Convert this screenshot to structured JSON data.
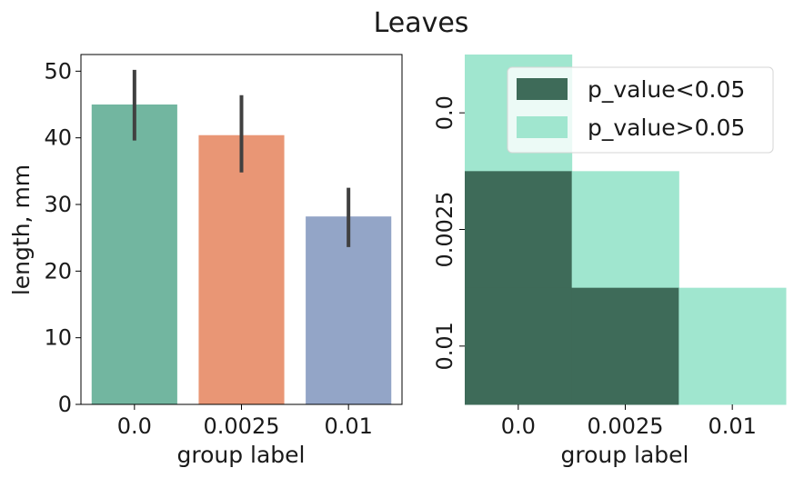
{
  "title": "Leaves",
  "colors": {
    "bars": [
      "#72b6a0",
      "#e99675",
      "#93a5c7"
    ],
    "errorbar": "#404040",
    "significant": "#3e6b59",
    "not_significant": "#a0e6cf",
    "axis": "#000000"
  },
  "chart_data": [
    {
      "type": "bar",
      "categories": [
        "0.0",
        "0.0025",
        "0.01"
      ],
      "values": [
        45.0,
        40.4,
        28.2
      ],
      "error_low": [
        39.6,
        34.8,
        23.6
      ],
      "error_high": [
        50.2,
        46.4,
        32.5
      ],
      "xlabel": "group label",
      "ylabel": "length, mm",
      "ylim": [
        0,
        52.5
      ],
      "yticks": [
        "0",
        "10",
        "20",
        "30",
        "40",
        "50"
      ],
      "grid": false
    },
    {
      "type": "heatmap",
      "x_categories": [
        "0.0",
        "0.0025",
        "0.01"
      ],
      "y_categories": [
        "0.0",
        "0.0025",
        "0.01"
      ],
      "cells": [
        {
          "row": 0,
          "col": 0,
          "class": "not_significant"
        },
        {
          "row": 1,
          "col": 0,
          "class": "significant"
        },
        {
          "row": 1,
          "col": 1,
          "class": "not_significant"
        },
        {
          "row": 2,
          "col": 0,
          "class": "significant"
        },
        {
          "row": 2,
          "col": 1,
          "class": "significant"
        },
        {
          "row": 2,
          "col": 2,
          "class": "not_significant"
        }
      ],
      "xlabel": "group label",
      "legend": {
        "placement": "top-right",
        "entries": [
          {
            "key": "significant",
            "label": "p_value<0.05"
          },
          {
            "key": "not_significant",
            "label": "p_value>0.05"
          }
        ]
      }
    }
  ]
}
